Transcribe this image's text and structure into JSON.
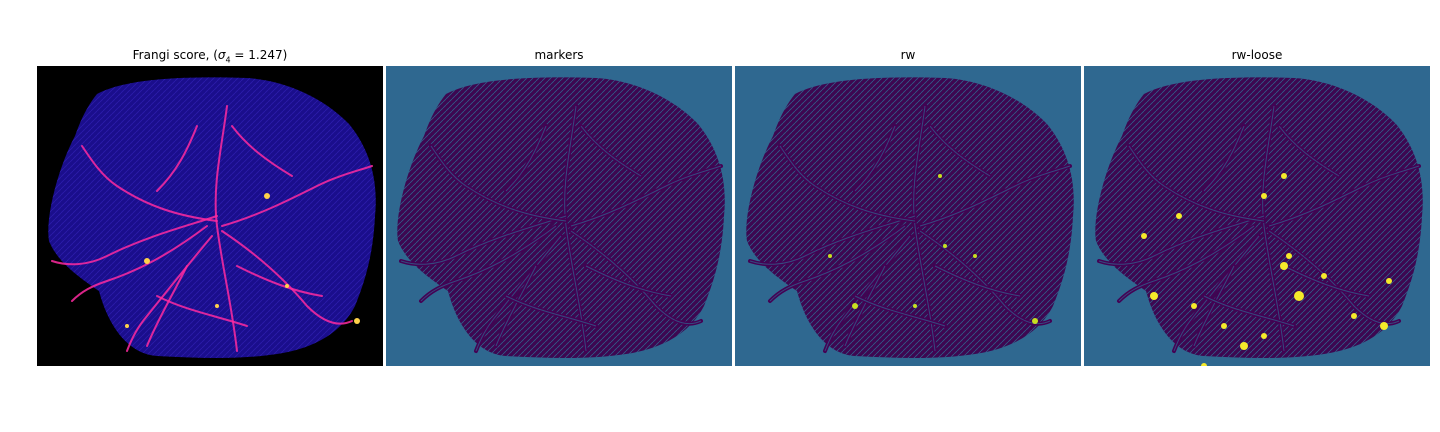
{
  "panels": [
    {
      "id": "frangi",
      "title_pre": "Frangi score, (",
      "title_sigma": "σ",
      "title_sub": "4",
      "title_post": " = 1.247)",
      "background": "#000000",
      "fill": "#1a0e8c",
      "vessel": "#ff2aa0",
      "highlight": "#ffd24a"
    },
    {
      "id": "markers",
      "title": "markers",
      "background": "#2f6890",
      "fill": "#3d0751",
      "vessel": "#440154",
      "highlight": "#2f6890"
    },
    {
      "id": "rw",
      "title": "rw",
      "background": "#2f6890",
      "fill": "#3d0751",
      "vessel": "#440154",
      "highlight": "#c8e020"
    },
    {
      "id": "rw-loose",
      "title": "rw-loose",
      "background": "#2f6890",
      "fill": "#3d0751",
      "vessel": "#440154",
      "highlight": "#f5ea2a"
    }
  ]
}
